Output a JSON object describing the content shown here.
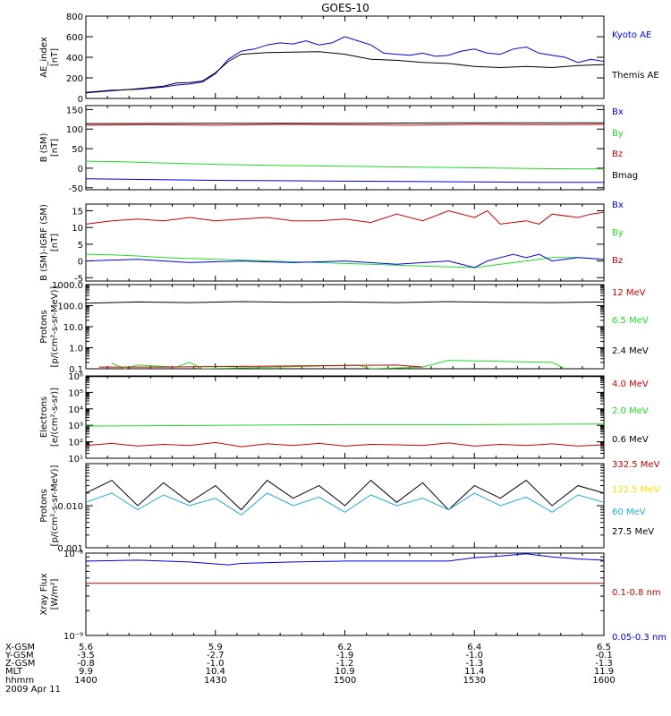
{
  "title": "GOES-10",
  "colors": {
    "black": "#000000",
    "blue": "#0000ee",
    "green": "#22dd22",
    "red": "#cc0000",
    "cyan": "#22aadd",
    "gold": "#ffdd00"
  },
  "chart_data": [
    {
      "type": "line",
      "ylabel": "AE_index",
      "yunit": "[nT]",
      "scale": "linear",
      "ylim": [
        0,
        800
      ],
      "yticks": [
        0,
        200,
        400,
        600,
        800
      ],
      "ytick_labels": [
        "0",
        "200",
        "400",
        "600",
        "800"
      ],
      "legend": [
        {
          "text": "Kyoto AE",
          "color": "blue"
        },
        {
          "text": "Themis AE",
          "color": "black"
        }
      ],
      "series": [
        {
          "name": "Kyoto AE",
          "color": "blue",
          "x": [
            0,
            0.05,
            0.1,
            0.2,
            0.3,
            0.35,
            0.4,
            0.45,
            0.5,
            0.55,
            0.6,
            0.65,
            0.7,
            0.75,
            0.8,
            0.85,
            0.9,
            0.95,
            1.0,
            1.05,
            1.1,
            1.15,
            1.2,
            1.25,
            1.3,
            1.35,
            1.4,
            1.45,
            1.5,
            1.55,
            1.6,
            1.65,
            1.7,
            1.75,
            1.8,
            1.85,
            1.9,
            1.95,
            2.0
          ],
          "y": [
            60,
            70,
            80,
            90,
            110,
            130,
            140,
            160,
            240,
            380,
            460,
            480,
            520,
            540,
            530,
            560,
            520,
            540,
            600,
            560,
            520,
            440,
            430,
            420,
            440,
            410,
            420,
            460,
            480,
            440,
            430,
            480,
            500,
            440,
            420,
            400,
            350,
            380,
            360
          ]
        },
        {
          "name": "Themis AE",
          "color": "black",
          "x": [
            0,
            0.1,
            0.2,
            0.3,
            0.35,
            0.4,
            0.45,
            0.5,
            0.55,
            0.6,
            0.7,
            0.8,
            0.9,
            1.0,
            1.1,
            1.2,
            1.3,
            1.4,
            1.5,
            1.6,
            1.7,
            1.8,
            1.9,
            2.0
          ],
          "y": [
            55,
            75,
            95,
            120,
            150,
            155,
            170,
            250,
            360,
            430,
            445,
            450,
            455,
            430,
            380,
            370,
            350,
            340,
            310,
            300,
            310,
            300,
            320,
            330
          ]
        }
      ]
    },
    {
      "type": "line",
      "ylabel": "B (SM)",
      "yunit": "[nT]",
      "scale": "linear",
      "ylim": [
        -55,
        160
      ],
      "yticks": [
        -50,
        0,
        50,
        100,
        150
      ],
      "ytick_labels": [
        "-50",
        "0",
        "50",
        "100",
        "150"
      ],
      "legend": [
        {
          "text": "Bx",
          "color": "blue"
        },
        {
          "text": "By",
          "color": "green"
        },
        {
          "text": "Bz",
          "color": "red"
        },
        {
          "text": "Bmag",
          "color": "black"
        }
      ],
      "series": [
        {
          "name": "Bmag",
          "color": "black",
          "x": [
            0,
            0.5,
            1.0,
            1.5,
            2.0
          ],
          "y": [
            114,
            115,
            115,
            116,
            116
          ]
        },
        {
          "name": "Bz",
          "color": "red",
          "x": [
            0,
            0.25,
            0.5,
            0.75,
            1.0,
            1.25,
            1.5,
            1.75,
            2.0
          ],
          "y": [
            110,
            111,
            110,
            112,
            111,
            110,
            112,
            111,
            112
          ]
        },
        {
          "name": "By",
          "color": "green",
          "x": [
            0,
            0.1,
            0.25,
            0.5,
            0.75,
            1.0,
            1.25,
            1.5,
            1.75,
            2.0
          ],
          "y": [
            18,
            17,
            14,
            10,
            7,
            5,
            3,
            1,
            -1,
            -2
          ]
        },
        {
          "name": "Bx",
          "color": "blue",
          "x": [
            0,
            0.25,
            0.5,
            0.75,
            1.0,
            1.25,
            1.5,
            1.75,
            2.0
          ],
          "y": [
            -27,
            -29,
            -31,
            -32,
            -33,
            -34,
            -35,
            -36,
            -36
          ]
        }
      ]
    },
    {
      "type": "line",
      "ylabel": "B (SM)-IGRF (SM)",
      "yunit": "[nT]",
      "scale": "linear",
      "ylim": [
        -6,
        17
      ],
      "yticks": [
        -5,
        0,
        5,
        10,
        15
      ],
      "ytick_labels": [
        "-5",
        "0",
        "5",
        "10",
        "15"
      ],
      "legend": [
        {
          "text": "Bx",
          "color": "blue"
        },
        {
          "text": "By",
          "color": "green"
        },
        {
          "text": "Bz",
          "color": "red"
        }
      ],
      "series": [
        {
          "name": "Bz",
          "color": "red",
          "x": [
            0,
            0.1,
            0.2,
            0.3,
            0.4,
            0.5,
            0.6,
            0.7,
            0.8,
            0.9,
            1.0,
            1.1,
            1.2,
            1.3,
            1.4,
            1.5,
            1.55,
            1.6,
            1.7,
            1.75,
            1.8,
            1.9,
            1.95,
            2.0
          ],
          "y": [
            11,
            12,
            12.5,
            12,
            13,
            12,
            12.5,
            13,
            12,
            12,
            12.5,
            11.5,
            14,
            12,
            15,
            13,
            15,
            11,
            12,
            11,
            14,
            13,
            14,
            14.5
          ]
        },
        {
          "name": "By",
          "color": "green",
          "x": [
            0,
            0.1,
            0.2,
            0.3,
            0.5,
            0.7,
            0.9,
            1.1,
            1.3,
            1.5,
            1.6,
            1.7,
            1.8,
            1.9,
            2.0
          ],
          "y": [
            2,
            1.8,
            1.5,
            1,
            0.5,
            0,
            -0.5,
            -1,
            -1.5,
            -2,
            -1,
            0,
            1,
            1,
            0.5
          ]
        },
        {
          "name": "Bx",
          "color": "blue",
          "x": [
            0,
            0.2,
            0.4,
            0.6,
            0.8,
            1.0,
            1.2,
            1.4,
            1.5,
            1.55,
            1.6,
            1.65,
            1.7,
            1.75,
            1.8,
            1.9,
            2.0
          ],
          "y": [
            0,
            0.5,
            -0.5,
            0,
            -0.5,
            0,
            -1,
            0,
            -2,
            0,
            1,
            2,
            1,
            2,
            0,
            1,
            0.5
          ]
        }
      ]
    },
    {
      "type": "line",
      "ylabel": "Protons",
      "yunit": "[p/(cm²-s-sr-MeV)]",
      "scale": "log",
      "ylim": [
        0.1,
        1000
      ],
      "yticks": [
        0.1,
        1,
        10,
        100,
        1000
      ],
      "ytick_labels": [
        "0.1",
        "1.0",
        "10.0",
        "100.0",
        "1000.0"
      ],
      "legend": [
        {
          "text": "12 MeV",
          "color": "red"
        },
        {
          "text": "6.5 MeV",
          "color": "green"
        },
        {
          "text": "2.4 MeV",
          "color": "black"
        }
      ],
      "series": [
        {
          "name": "2.4 MeV",
          "color": "black",
          "x": [
            0,
            0.2,
            0.4,
            0.6,
            0.8,
            1.0,
            1.2,
            1.4,
            1.6,
            1.8,
            2.0
          ],
          "y": [
            130,
            150,
            140,
            155,
            145,
            150,
            140,
            155,
            145,
            140,
            150
          ]
        },
        {
          "name": "6.5 MeV",
          "color": "green",
          "x": [
            0.1,
            0.15,
            0.2,
            0.35,
            0.4,
            0.45,
            1.05,
            1.1,
            1.3,
            1.4,
            1.8,
            1.85
          ],
          "y": [
            0.18,
            0.1,
            0.15,
            0.12,
            0.2,
            0.1,
            0.15,
            0.1,
            0.12,
            0.25,
            0.2,
            0.1
          ]
        },
        {
          "name": "12 MeV",
          "color": "red",
          "x": [
            0.05,
            0.3,
            1.2,
            1.3
          ],
          "y": [
            0.12,
            0.12,
            0.15,
            0.12
          ]
        }
      ]
    },
    {
      "type": "line",
      "ylabel": "Electrons",
      "yunit": "[e/(cm²-s-sr)]",
      "scale": "log",
      "ylim": [
        10,
        1000000
      ],
      "yticks": [
        10,
        100,
        1000,
        10000,
        100000,
        1000000
      ],
      "ytick_labels": [
        "10¹",
        "10²",
        "10³",
        "10⁴",
        "10⁵",
        "10⁶"
      ],
      "legend": [
        {
          "text": "4.0 MeV",
          "color": "red"
        },
        {
          "text": "2.0 MeV",
          "color": "green"
        },
        {
          "text": "0.6 MeV",
          "color": "black"
        }
      ],
      "series": [
        {
          "name": "0.6 MeV",
          "color": "black",
          "x": [
            0,
            1,
            2
          ],
          "y": [
            900000,
            900000,
            900000
          ]
        },
        {
          "name": "2.0 MeV",
          "color": "green",
          "x": [
            0,
            0.5,
            1.0,
            1.5,
            2.0
          ],
          "y": [
            900,
            1000,
            1100,
            1100,
            1200
          ]
        },
        {
          "name": "4.0 MeV",
          "color": "red",
          "x": [
            0,
            0.1,
            0.2,
            0.3,
            0.4,
            0.5,
            0.6,
            0.7,
            0.8,
            0.9,
            1.0,
            1.1,
            1.2,
            1.3,
            1.4,
            1.5,
            1.6,
            1.7,
            1.8,
            1.9,
            2.0
          ],
          "y": [
            60,
            80,
            55,
            70,
            60,
            90,
            50,
            75,
            60,
            80,
            55,
            70,
            65,
            60,
            85,
            55,
            70,
            60,
            75,
            55,
            65
          ]
        }
      ]
    },
    {
      "type": "line",
      "ylabel": "Protons",
      "yunit": "[p/(cm²-s-sr-MeV)]",
      "scale": "log",
      "ylim": [
        0.001,
        0.1
      ],
      "yticks": [
        0.001,
        0.01
      ],
      "ytick_labels": [
        "0.001",
        "0.010"
      ],
      "legend": [
        {
          "text": "332.5 MeV",
          "color": "red"
        },
        {
          "text": "122.5 MeV",
          "color": "gold"
        },
        {
          "text": "60 MeV",
          "color": "cyan"
        },
        {
          "text": "27.5 MeV",
          "color": "black"
        }
      ],
      "series": [
        {
          "name": "27.5 MeV",
          "color": "black",
          "x": [
            0,
            0.1,
            0.2,
            0.3,
            0.4,
            0.5,
            0.6,
            0.7,
            0.8,
            0.9,
            1.0,
            1.1,
            1.2,
            1.3,
            1.4,
            1.5,
            1.6,
            1.7,
            1.8,
            1.9,
            2.0
          ],
          "y": [
            0.02,
            0.04,
            0.01,
            0.035,
            0.012,
            0.03,
            0.008,
            0.04,
            0.015,
            0.03,
            0.01,
            0.04,
            0.012,
            0.035,
            0.008,
            0.03,
            0.015,
            0.04,
            0.01,
            0.03,
            0.02
          ]
        },
        {
          "name": "60 MeV",
          "color": "cyan",
          "x": [
            0,
            0.1,
            0.2,
            0.3,
            0.4,
            0.5,
            0.6,
            0.7,
            0.8,
            0.9,
            1.0,
            1.1,
            1.2,
            1.3,
            1.4,
            1.5,
            1.6,
            1.7,
            1.8,
            1.9,
            2.0
          ],
          "y": [
            0.012,
            0.02,
            0.008,
            0.018,
            0.01,
            0.015,
            0.006,
            0.02,
            0.01,
            0.016,
            0.007,
            0.018,
            0.01,
            0.015,
            0.008,
            0.02,
            0.01,
            0.016,
            0.007,
            0.018,
            0.012
          ]
        }
      ]
    },
    {
      "type": "line",
      "ylabel": "Xray Flux",
      "yunit": "[W/m²]",
      "scale": "log",
      "ylim": [
        1e-09,
        1e-08
      ],
      "yticks": [
        1e-09,
        1e-08
      ],
      "ytick_labels": [
        "10⁻⁹",
        "10⁻⁸"
      ],
      "legend": [
        {
          "text": "0.1-0.8 nm",
          "color": "red"
        },
        {
          "text": "0.05-0.3 nm",
          "color": "blue"
        }
      ],
      "series": [
        {
          "name": "0.05-0.3 nm",
          "color": "blue",
          "x": [
            0,
            0.2,
            0.4,
            0.55,
            0.6,
            0.8,
            1.0,
            1.2,
            1.4,
            1.5,
            1.6,
            1.7,
            1.8,
            1.9,
            2.0
          ],
          "y": [
            8e-09,
            8.2e-09,
            7.8e-09,
            7.2e-09,
            7.5e-09,
            7.8e-09,
            8e-09,
            8e-09,
            8e-09,
            8.8e-09,
            9.2e-09,
            9.8e-09,
            9e-09,
            8.5e-09,
            8.2e-09
          ]
        },
        {
          "name": "0.1-0.8 nm",
          "color": "red",
          "x": [
            0,
            2
          ],
          "y": [
            4.3e-09,
            4.3e-09
          ]
        }
      ]
    }
  ],
  "x_axis": {
    "row_labels": [
      "X-GSM",
      "Y-GSM",
      "Z-GSM",
      "MLT",
      "hhmm"
    ],
    "date": "2009 Apr 11",
    "ticks": [
      {
        "x": 0,
        "values": [
          "5.6",
          "-3.5",
          "-0.8",
          "9.9",
          "1400"
        ]
      },
      {
        "x": 0.5,
        "values": [
          "5.9",
          "-2.7",
          "-1.0",
          "10.4",
          "1430"
        ]
      },
      {
        "x": 1.0,
        "values": [
          "6.2",
          "-1.9",
          "-1.2",
          "10.9",
          "1500"
        ]
      },
      {
        "x": 1.5,
        "values": [
          "6.4",
          "-1.0",
          "-1.3",
          "11.4",
          "1530"
        ]
      },
      {
        "x": 2.0,
        "values": [
          "6.5",
          "-0.1",
          "-1.3",
          "11.9",
          "1600"
        ]
      }
    ]
  }
}
